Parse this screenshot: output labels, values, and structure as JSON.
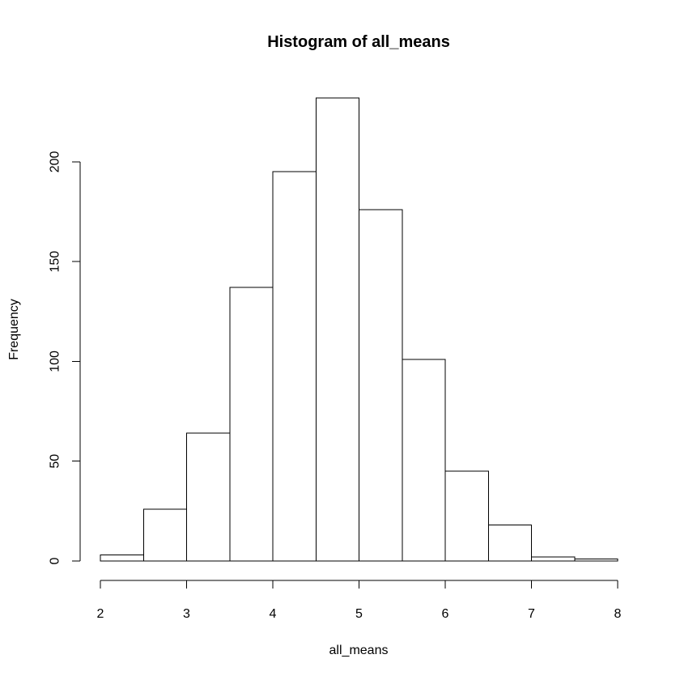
{
  "chart_data": {
    "type": "bar",
    "title": "Histogram of all_means",
    "xlabel": "all_means",
    "ylabel": "Frequency",
    "bins": [
      {
        "start": 2.0,
        "end": 2.5,
        "value": 3
      },
      {
        "start": 2.5,
        "end": 3.0,
        "value": 26
      },
      {
        "start": 3.0,
        "end": 3.5,
        "value": 64
      },
      {
        "start": 3.5,
        "end": 4.0,
        "value": 137
      },
      {
        "start": 4.0,
        "end": 4.5,
        "value": 195
      },
      {
        "start": 4.5,
        "end": 5.0,
        "value": 232
      },
      {
        "start": 5.0,
        "end": 5.5,
        "value": 176
      },
      {
        "start": 5.5,
        "end": 6.0,
        "value": 101
      },
      {
        "start": 6.0,
        "end": 6.5,
        "value": 45
      },
      {
        "start": 6.5,
        "end": 7.0,
        "value": 18
      },
      {
        "start": 7.0,
        "end": 7.5,
        "value": 2
      },
      {
        "start": 7.5,
        "end": 8.0,
        "value": 1
      }
    ],
    "xlim": [
      2,
      8
    ],
    "ylim": [
      0,
      232
    ],
    "x_ticks": [
      "2",
      "3",
      "4",
      "5",
      "6",
      "7",
      "8"
    ],
    "y_ticks": [
      "0",
      "50",
      "100",
      "150",
      "200"
    ],
    "grid": false,
    "legend": "none",
    "colors": {
      "bar_fill": "#ffffff",
      "bar_stroke": "#000000"
    }
  }
}
